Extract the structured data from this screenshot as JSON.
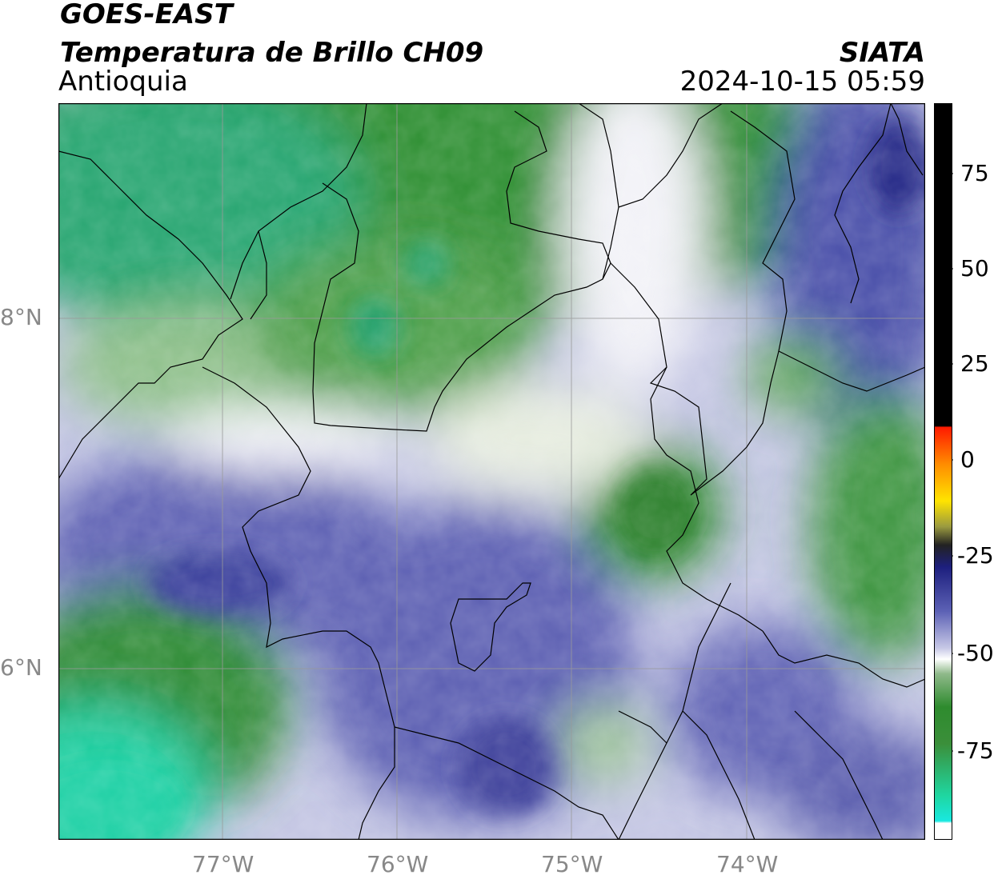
{
  "header": {
    "satellite": "GOES-EAST",
    "product": "Temperatura de Brillo CH09",
    "region": "Antioquia",
    "agency": "SIATA",
    "timestamp": "2024-10-15 05:59"
  },
  "map": {
    "lon_labels": [
      "77°W",
      "76°W",
      "75°W",
      "74°W"
    ],
    "lat_labels": [
      "8°N",
      "6°N"
    ],
    "extent_lon": [
      -77.95,
      -72.98
    ],
    "extent_lat": [
      5.0,
      9.2
    ],
    "gridlines": true
  },
  "colorbar": {
    "ticks": [
      "75",
      "50",
      "25",
      "0",
      "-25",
      "-50",
      "-75"
    ],
    "range": [
      -95,
      90
    ],
    "colors": {
      "hot": "#000000",
      "warm": [
        "#ff1a00",
        "#ff8c00",
        "#ffe400",
        "#222222"
      ],
      "cold": [
        "#1d1f7e",
        "#5c61b5",
        "#c7c8e6",
        "#ffffff",
        "#8fb98a",
        "#2e8b2e",
        "#1fd6a0",
        "#19e8e0"
      ]
    }
  }
}
